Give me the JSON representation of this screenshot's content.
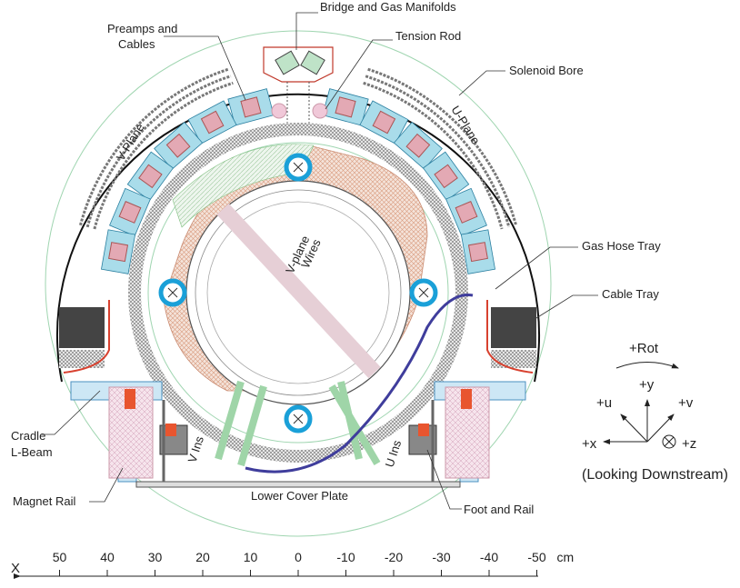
{
  "callouts": [
    {
      "lines": [
        "Bridge and Gas Manifolds"
      ]
    },
    {
      "lines": [
        "Tension Rod"
      ]
    },
    {
      "lines": [
        "Preamps and",
        "Cables"
      ]
    },
    {
      "lines": [
        "Solenoid Bore"
      ]
    },
    {
      "lines": [
        "Gas Hose Tray"
      ]
    },
    {
      "lines": [
        "Cable Tray"
      ]
    },
    {
      "lines": [
        "Cradle",
        "L-Beam"
      ]
    },
    {
      "lines": [
        "Magnet Rail"
      ]
    },
    {
      "lines": [
        "Lower Cover Plate"
      ]
    },
    {
      "lines": [
        "Foot and Rail"
      ]
    }
  ],
  "inner_labels": {
    "v_plane": "V-Plane",
    "u_plane": "U-Plane",
    "v_wires": [
      "V-plane",
      "Wires"
    ],
    "v_ins": "V Ins",
    "u_ins": "U Ins"
  },
  "coordinate_key": {
    "rot": "+Rot",
    "y": "+y",
    "u": "+u",
    "v": "+v",
    "x": "+x",
    "z": "+z",
    "note": "(Looking Downstream)"
  },
  "scale": {
    "axis_label": "X",
    "ticks": [
      50,
      40,
      30,
      20,
      10,
      0,
      -10,
      -20,
      -30,
      -40,
      -50
    ],
    "unit": "cm"
  }
}
